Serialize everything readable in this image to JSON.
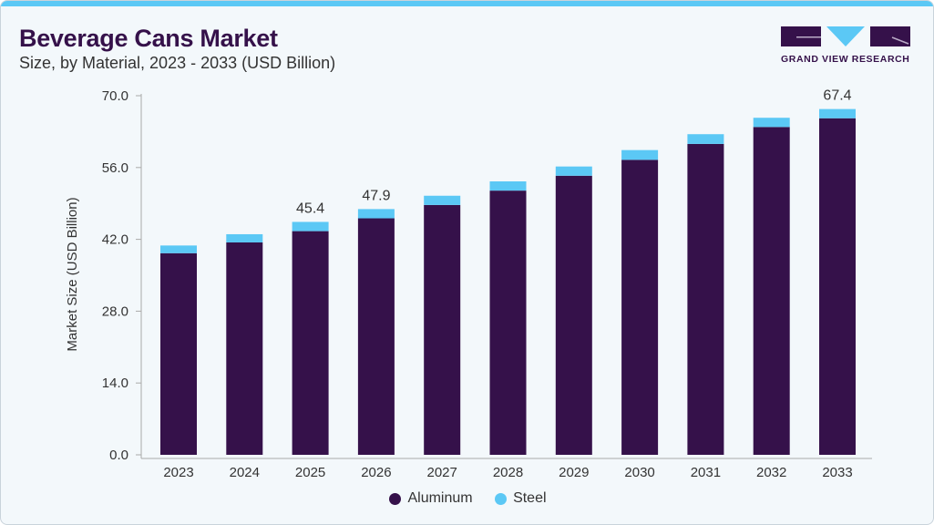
{
  "header": {
    "title": "Beverage Cans Market",
    "subtitle": "Size, by Material, 2023 - 2033 (USD Billion)",
    "logo_text": "GRAND VIEW RESEARCH"
  },
  "colors": {
    "aluminum": "#35114a",
    "steel": "#5bc8f5",
    "accent_bar": "#5bc8f5"
  },
  "chart_data": {
    "type": "bar",
    "stacked": true,
    "title": "Beverage Cans Market",
    "subtitle": "Size, by Material, 2023 - 2033 (USD Billion)",
    "xlabel": "",
    "ylabel": "Market Size (USD Billion)",
    "ylim": [
      0,
      70
    ],
    "yticks": [
      "0.0",
      "14.0",
      "28.0",
      "42.0",
      "56.0",
      "70.0"
    ],
    "grid": false,
    "legend": "bottom",
    "categories": [
      "2023",
      "2024",
      "2025",
      "2026",
      "2027",
      "2028",
      "2029",
      "2030",
      "2031",
      "2032",
      "2033"
    ],
    "series": [
      {
        "name": "Aluminum",
        "values": [
          39.3,
          41.4,
          43.6,
          46.1,
          48.7,
          51.5,
          54.4,
          57.5,
          60.6,
          63.9,
          65.6
        ]
      },
      {
        "name": "Steel",
        "values": [
          1.5,
          1.6,
          1.8,
          1.8,
          1.8,
          1.8,
          1.8,
          1.9,
          1.9,
          1.8,
          1.8
        ]
      }
    ],
    "data_labels": [
      {
        "category": "2025",
        "text": "45.4"
      },
      {
        "category": "2026",
        "text": "47.9"
      },
      {
        "category": "2033",
        "text": "67.4"
      }
    ]
  }
}
